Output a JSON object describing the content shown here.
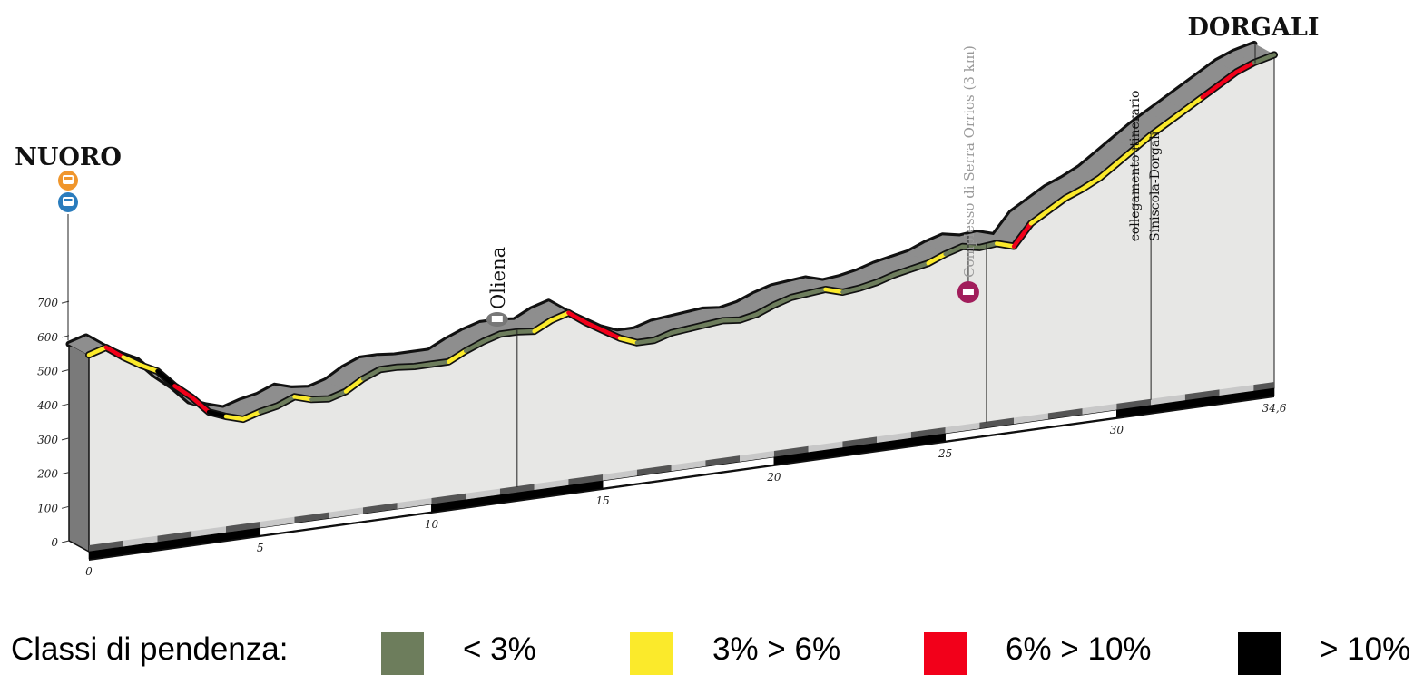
{
  "chart_data": {
    "type": "area",
    "title": "",
    "start_label": "NUORO",
    "end_label": "DORGALI",
    "xlabel": "",
    "ylabel": "",
    "xlim": [
      0,
      34.6
    ],
    "ylim": [
      0,
      700
    ],
    "y_ticks": [
      0,
      100,
      200,
      300,
      400,
      500,
      600,
      700
    ],
    "y_tick_labels": [
      "0",
      "100",
      "200",
      "300",
      "400",
      "500",
      "600",
      "700"
    ],
    "x_ticks": [
      0,
      5,
      10,
      15,
      20,
      25,
      30,
      34.6
    ],
    "x_tick_labels": [
      "0",
      "5",
      "10",
      "15",
      "20",
      "25",
      "30",
      "34,6"
    ],
    "grid": false,
    "elevation_profile": {
      "distance_km": [
        0,
        0.5,
        1,
        1.5,
        2,
        2.5,
        3,
        3.5,
        4,
        4.5,
        5,
        5.5,
        6,
        6.5,
        7,
        7.5,
        8,
        8.5,
        9,
        9.5,
        10,
        10.5,
        11,
        11.5,
        12,
        12.5,
        13,
        13.5,
        14,
        14.5,
        15,
        15.5,
        16,
        16.5,
        17,
        17.5,
        18,
        18.5,
        19,
        19.5,
        20,
        20.5,
        21,
        21.5,
        22,
        22.5,
        23,
        23.5,
        24,
        24.5,
        25,
        25.5,
        26,
        26.5,
        27,
        27.5,
        28,
        28.5,
        29,
        29.5,
        30,
        30.5,
        31,
        31.5,
        32,
        32.5,
        33,
        33.5,
        34,
        34.6
      ],
      "elevation_m": [
        575,
        590,
        555,
        525,
        500,
        450,
        410,
        360,
        340,
        325,
        340,
        350,
        370,
        355,
        350,
        365,
        395,
        415,
        415,
        410,
        410,
        410,
        435,
        455,
        470,
        470,
        465,
        490,
        505,
        470,
        440,
        410,
        390,
        390,
        405,
        410,
        415,
        420,
        415,
        425,
        445,
        460,
        465,
        470,
        455,
        460,
        470,
        485,
        495,
        505,
        525,
        540,
        530,
        535,
        520,
        580,
        610,
        640,
        660,
        685,
        720,
        755,
        790,
        820,
        850,
        880,
        910,
        940,
        960,
        975
      ],
      "gradient_class": [
        "yellow",
        "red",
        "yellow",
        "yellow",
        "black",
        "red",
        "red",
        "black",
        "yellow",
        "yellow",
        "green",
        "green",
        "yellow",
        "green",
        "green",
        "yellow",
        "green",
        "green",
        "green",
        "green",
        "green",
        "yellow",
        "green",
        "green",
        "green",
        "green",
        "yellow",
        "yellow",
        "red",
        "red",
        "red",
        "yellow",
        "green",
        "green",
        "green",
        "green",
        "green",
        "green",
        "green",
        "green",
        "green",
        "green",
        "green",
        "yellow",
        "green",
        "green",
        "green",
        "green",
        "green",
        "yellow",
        "green",
        "green",
        "green",
        "yellow",
        "red",
        "yellow",
        "yellow",
        "yellow",
        "yellow",
        "yellow",
        "yellow",
        "yellow",
        "yellow",
        "yellow",
        "yellow",
        "red",
        "red",
        "red",
        "green",
        "yellow"
      ]
    },
    "annotations": [
      {
        "label": "Oliena",
        "km": 12.5,
        "style": "regular",
        "icon": "town-hall-icon"
      },
      {
        "label": "Complesso di Serra Orrios (3 km)",
        "km": 26.2,
        "style": "muted",
        "icon": "archaeological-site-icon"
      },
      {
        "label_lines": [
          "collegamento itinerario",
          "Siniscola-Dorgali"
        ],
        "km": 31,
        "style": "regular",
        "icon": ""
      }
    ],
    "start_icons": [
      "bus-stop-orange-icon",
      "bus-stop-blue-icon"
    ],
    "legend": {
      "title": "Classi di pendenza:",
      "items": [
        {
          "key": "green",
          "label": "< 3%",
          "color": "#6d7d5c"
        },
        {
          "key": "yellow",
          "label": "3% > 6%",
          "color": "#fbea2b"
        },
        {
          "key": "red",
          "label": "6% > 10%",
          "color": "#f2001a"
        },
        {
          "key": "black",
          "label": "> 10%",
          "color": "#000000"
        }
      ]
    }
  }
}
